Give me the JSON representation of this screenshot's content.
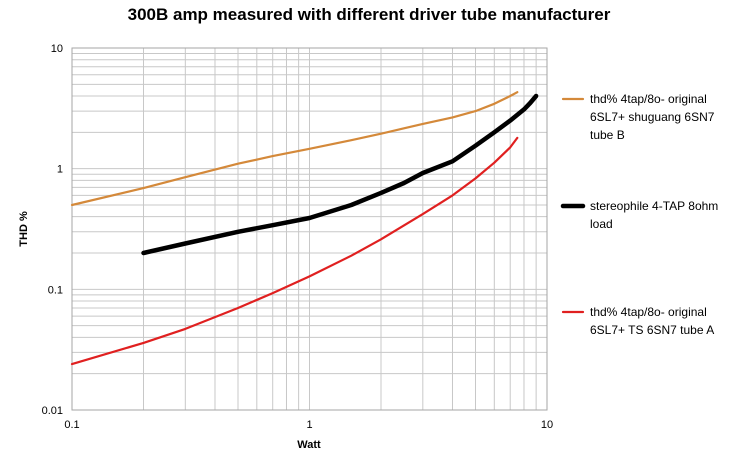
{
  "chart_data": {
    "type": "line",
    "title": "300B amp measured with different driver tube manufacturer",
    "xlabel": "Watt",
    "ylabel": "THD %",
    "x_scale": "log",
    "y_scale": "log",
    "xlim": [
      0.1,
      10
    ],
    "ylim": [
      0.01,
      10
    ],
    "x_ticks": [
      "0.1",
      "1",
      "10"
    ],
    "y_ticks": [
      "0.01",
      "0.1",
      "1",
      "10"
    ],
    "grid": true,
    "legend_position": "right",
    "series": [
      {
        "name": "thd% 4tap/8o- original 6SL7+ shuguang 6SN7 tube B",
        "legend_lines": [
          "thd% 4tap/8o- original",
          "6SL7+ shuguang 6SN7",
          "tube B"
        ],
        "color": "#d4893a",
        "x": [
          0.1,
          0.2,
          0.3,
          0.5,
          0.7,
          1,
          1.5,
          2,
          3,
          4,
          5,
          6,
          7,
          7.5
        ],
        "y": [
          0.5,
          0.69,
          0.85,
          1.1,
          1.27,
          1.46,
          1.72,
          1.95,
          2.35,
          2.66,
          3.0,
          3.45,
          4.0,
          4.3
        ]
      },
      {
        "name": "stereophile 4-TAP 8ohm load",
        "legend_lines": [
          "stereophile 4-TAP 8ohm",
          "load"
        ],
        "color": "#000000",
        "x": [
          0.2,
          0.3,
          0.5,
          0.7,
          1,
          1.5,
          2,
          2.5,
          3,
          4,
          5,
          6,
          7,
          8,
          8.5,
          9
        ],
        "y": [
          0.2,
          0.24,
          0.3,
          0.34,
          0.39,
          0.5,
          0.63,
          0.76,
          0.92,
          1.15,
          1.55,
          2.0,
          2.5,
          3.1,
          3.5,
          4.0
        ]
      },
      {
        "name": "thd% 4tap/8o- original 6SL7+ TS 6SN7 tube A",
        "legend_lines": [
          "thd% 4tap/8o- original",
          "6SL7+ TS 6SN7 tube A"
        ],
        "color": "#e02020",
        "x": [
          0.1,
          0.2,
          0.3,
          0.5,
          0.7,
          1,
          1.5,
          2,
          3,
          4,
          5,
          6,
          7,
          7.5
        ],
        "y": [
          0.024,
          0.036,
          0.047,
          0.07,
          0.093,
          0.128,
          0.19,
          0.26,
          0.42,
          0.6,
          0.83,
          1.12,
          1.5,
          1.8
        ]
      }
    ]
  }
}
